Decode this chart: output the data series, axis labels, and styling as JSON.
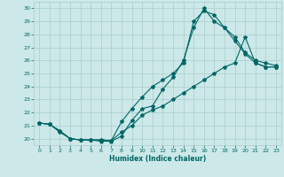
{
  "xlabel": "Humidex (Indice chaleur)",
  "bg_color": "#cce8e8",
  "grid_color": "#aacccc",
  "line_color": "#006666",
  "xlim": [
    -0.5,
    23.5
  ],
  "ylim": [
    19.5,
    30.5
  ],
  "xticks": [
    0,
    1,
    2,
    3,
    4,
    5,
    6,
    7,
    8,
    9,
    10,
    11,
    12,
    13,
    14,
    15,
    16,
    17,
    18,
    19,
    20,
    21,
    22,
    23
  ],
  "yticks": [
    20,
    21,
    22,
    23,
    24,
    25,
    26,
    27,
    28,
    29,
    30
  ],
  "line1_x": [
    0,
    1,
    2,
    3,
    4,
    5,
    6,
    7,
    8,
    9,
    10,
    11,
    12,
    13,
    14,
    15,
    16,
    17,
    18,
    19,
    20,
    21,
    22,
    23
  ],
  "line1_y": [
    21.2,
    21.1,
    20.5,
    20.0,
    19.9,
    19.9,
    19.8,
    19.8,
    20.2,
    21.4,
    22.3,
    22.5,
    23.8,
    24.7,
    26.0,
    28.5,
    30.0,
    29.0,
    28.5,
    27.8,
    26.6,
    26.0,
    25.8,
    25.6
  ],
  "line2_x": [
    0,
    1,
    2,
    3,
    4,
    5,
    6,
    7,
    8,
    9,
    10,
    11,
    12,
    13,
    14,
    15,
    16,
    17,
    18,
    19,
    20,
    21,
    22,
    23
  ],
  "line2_y": [
    21.2,
    21.1,
    20.6,
    20.0,
    19.9,
    19.9,
    19.9,
    19.85,
    21.3,
    22.3,
    23.2,
    24.0,
    24.5,
    25.0,
    25.8,
    29.0,
    29.8,
    29.5,
    28.5,
    27.5,
    26.5,
    25.8,
    25.5,
    25.5
  ],
  "line3_x": [
    0,
    1,
    2,
    3,
    4,
    5,
    6,
    7,
    8,
    9,
    10,
    11,
    12,
    13,
    14,
    15,
    16,
    17,
    18,
    19,
    20,
    21,
    22,
    23
  ],
  "line3_y": [
    21.2,
    21.1,
    20.6,
    20.0,
    19.9,
    19.9,
    19.9,
    19.85,
    20.5,
    21.0,
    21.8,
    22.2,
    22.5,
    23.0,
    23.5,
    24.0,
    24.5,
    25.0,
    25.5,
    25.8,
    27.8,
    25.8,
    25.5,
    25.5
  ]
}
